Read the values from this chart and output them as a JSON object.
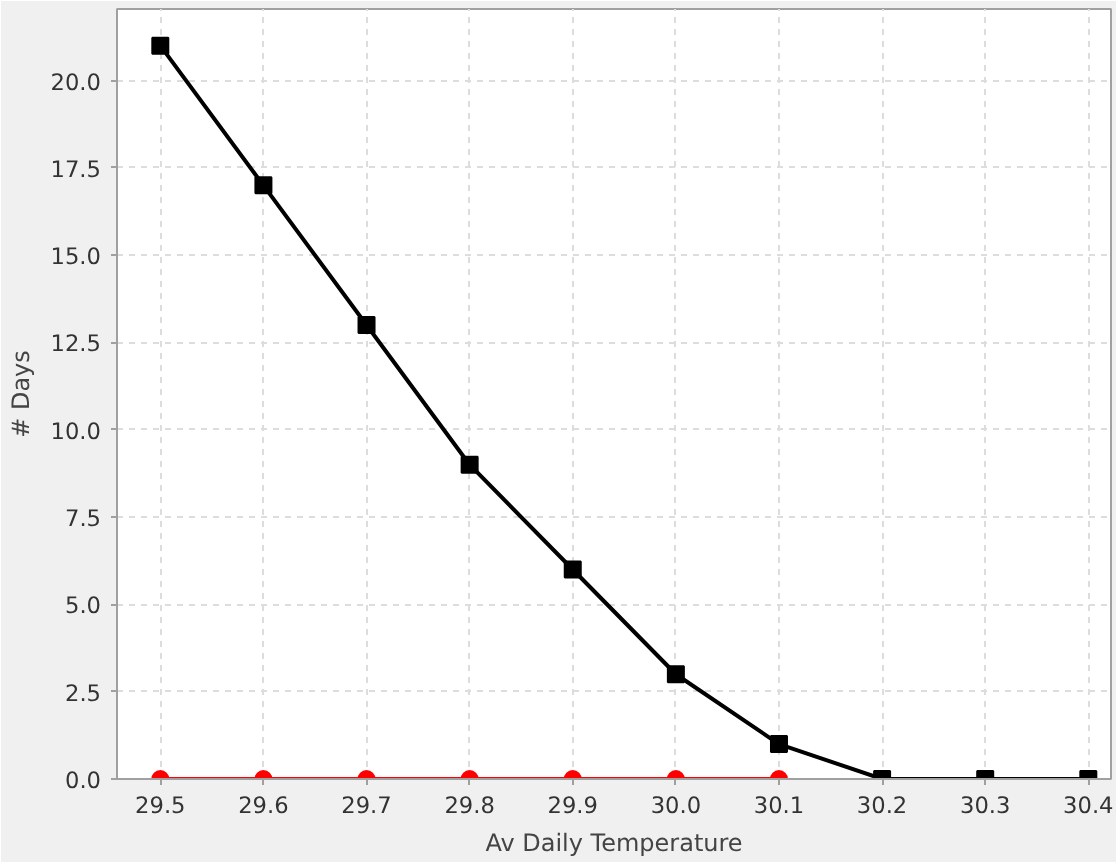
{
  "chart_data": {
    "type": "line",
    "xlabel": "Av Daily Temperature",
    "ylabel": "# Days",
    "x": [
      29.5,
      29.6,
      29.7,
      29.8,
      29.9,
      30.0,
      30.1,
      30.2,
      30.3,
      30.4
    ],
    "series": [
      {
        "color": "#ff0000",
        "values": [
          0,
          0,
          0,
          0,
          0,
          0,
          0,
          null,
          null,
          null
        ],
        "marker": "circle"
      },
      {
        "color": "#000000",
        "values": [
          21,
          17,
          13,
          9,
          6,
          3,
          1,
          0,
          0,
          0
        ],
        "marker": "square"
      }
    ],
    "xlim": [
      29.458,
      30.422
    ],
    "ylim": [
      0,
      22.05
    ],
    "xticks": [
      {
        "value": 29.5,
        "label": "29.5"
      },
      {
        "value": 29.6,
        "label": "29.6"
      },
      {
        "value": 29.7,
        "label": "29.7"
      },
      {
        "value": 29.8,
        "label": "29.8"
      },
      {
        "value": 29.9,
        "label": "29.9"
      },
      {
        "value": 30.0,
        "label": "30.0"
      },
      {
        "value": 30.1,
        "label": "30.1"
      },
      {
        "value": 30.2,
        "label": "30.2"
      },
      {
        "value": 30.3,
        "label": "30.3"
      },
      {
        "value": 30.4,
        "label": "30.4"
      }
    ],
    "yticks": [
      {
        "value": 0,
        "label": "0.0"
      },
      {
        "value": 2.5,
        "label": "2.5"
      },
      {
        "value": 5,
        "label": "5.0"
      },
      {
        "value": 7.5,
        "label": "7.5"
      },
      {
        "value": 10,
        "label": "10.0"
      },
      {
        "value": 12.5,
        "label": "12.5"
      },
      {
        "value": 15,
        "label": "15.0"
      },
      {
        "value": 17.5,
        "label": "17.5"
      },
      {
        "value": 20,
        "label": "20.0"
      }
    ],
    "grid": true,
    "line_style": "solid"
  }
}
